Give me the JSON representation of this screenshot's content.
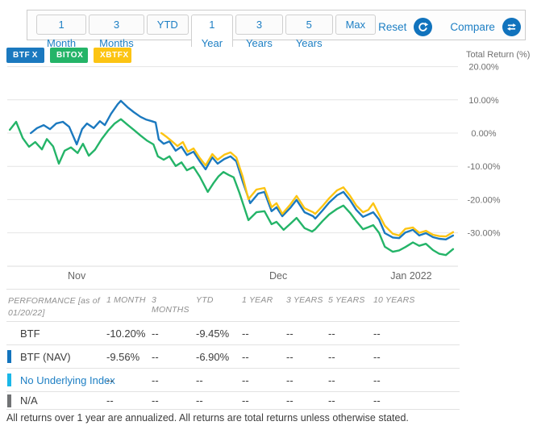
{
  "toolbar": {
    "tabs": [
      {
        "label": "1 Month",
        "selected": false
      },
      {
        "label": "3 Months",
        "selected": false
      },
      {
        "label": "YTD",
        "selected": false
      },
      {
        "label": "1 Year",
        "selected": true
      },
      {
        "label": "3 Years",
        "selected": false
      },
      {
        "label": "5 Years",
        "selected": false
      },
      {
        "label": "Max",
        "selected": false
      }
    ],
    "reset_label": "Reset",
    "compare_label": "Compare",
    "accent_color": "#1d7fc4",
    "icon_circle_color": "#1173bd"
  },
  "tickers": [
    {
      "symbol": "BTF",
      "color": "#1b79bf",
      "close_label": "X"
    },
    {
      "symbol": "BITO",
      "color": "#24b468",
      "close_label": "X"
    },
    {
      "symbol": "XBTF",
      "color": "#fcc413",
      "close_label": "X"
    }
  ],
  "chart_data": {
    "type": "line",
    "y_axis": {
      "label": "Total Return (%)",
      "ticks": [
        "20.00%",
        "10.00%",
        "0.00%",
        "-10.00%",
        "-20.00%",
        "-30.00%"
      ],
      "tick_values": [
        20,
        10,
        0,
        -10,
        -20,
        -30
      ],
      "min": -40,
      "max": 25,
      "grid": true
    },
    "x_axis": {
      "labels": [
        {
          "text": "Nov",
          "pos": 0.154
        },
        {
          "text": "Dec",
          "pos": 0.606
        },
        {
          "text": "Jan 2022",
          "pos": 0.904
        }
      ]
    },
    "series": [
      {
        "name": "BITO",
        "color": "#24b468",
        "points": [
          [
            0.004,
            1.0
          ],
          [
            0.018,
            3.4
          ],
          [
            0.033,
            -1.5
          ],
          [
            0.047,
            -4.1
          ],
          [
            0.061,
            -2.7
          ],
          [
            0.076,
            -4.9
          ],
          [
            0.087,
            -1.8
          ],
          [
            0.101,
            -4.0
          ],
          [
            0.114,
            -9.2
          ],
          [
            0.127,
            -5.3
          ],
          [
            0.141,
            -4.3
          ],
          [
            0.156,
            -6.0
          ],
          [
            0.168,
            -3.2
          ],
          [
            0.181,
            -6.8
          ],
          [
            0.195,
            -5.0
          ],
          [
            0.21,
            -1.8
          ],
          [
            0.224,
            0.7
          ],
          [
            0.239,
            2.9
          ],
          [
            0.253,
            4.2
          ],
          [
            0.268,
            2.5
          ],
          [
            0.282,
            1.0
          ],
          [
            0.297,
            -0.7
          ],
          [
            0.311,
            -2.2
          ],
          [
            0.326,
            -3.4
          ],
          [
            0.336,
            -7.0
          ],
          [
            0.349,
            -8.0
          ],
          [
            0.362,
            -7.0
          ],
          [
            0.376,
            -9.9
          ],
          [
            0.389,
            -8.8
          ],
          [
            0.401,
            -11.2
          ],
          [
            0.416,
            -10.2
          ],
          [
            0.43,
            -13.1
          ],
          [
            0.448,
            -17.7
          ],
          [
            0.461,
            -15.0
          ],
          [
            0.472,
            -13.0
          ],
          [
            0.483,
            -11.7
          ],
          [
            0.495,
            -12.6
          ],
          [
            0.506,
            -13.3
          ],
          [
            0.519,
            -18.0
          ],
          [
            0.539,
            -26.2
          ],
          [
            0.557,
            -23.8
          ],
          [
            0.575,
            -23.5
          ],
          [
            0.591,
            -27.4
          ],
          [
            0.602,
            -26.7
          ],
          [
            0.618,
            -29.1
          ],
          [
            0.633,
            -27.3
          ],
          [
            0.647,
            -25.5
          ],
          [
            0.665,
            -28.6
          ],
          [
            0.682,
            -29.6
          ],
          [
            0.689,
            -28.9
          ],
          [
            0.705,
            -26.5
          ],
          [
            0.72,
            -24.5
          ],
          [
            0.738,
            -22.8
          ],
          [
            0.752,
            -21.8
          ],
          [
            0.767,
            -24.0
          ],
          [
            0.781,
            -26.5
          ],
          [
            0.796,
            -28.9
          ],
          [
            0.808,
            -28.3
          ],
          [
            0.819,
            -27.7
          ],
          [
            0.832,
            -30.0
          ],
          [
            0.845,
            -34.2
          ],
          [
            0.863,
            -35.7
          ],
          [
            0.877,
            -35.3
          ],
          [
            0.891,
            -34.3
          ],
          [
            0.908,
            -32.9
          ],
          [
            0.922,
            -33.9
          ],
          [
            0.937,
            -33.3
          ],
          [
            0.953,
            -35.2
          ],
          [
            0.967,
            -36.3
          ],
          [
            0.982,
            -36.7
          ],
          [
            0.998,
            -34.9
          ]
        ]
      },
      {
        "name": "BTF (NAV)",
        "color": "#1b79bf",
        "points": [
          [
            0.051,
            0.0
          ],
          [
            0.065,
            1.5
          ],
          [
            0.08,
            2.4
          ],
          [
            0.094,
            1.2
          ],
          [
            0.108,
            2.9
          ],
          [
            0.123,
            3.4
          ],
          [
            0.137,
            1.9
          ],
          [
            0.154,
            -3.4
          ],
          [
            0.166,
            1.2
          ],
          [
            0.177,
            2.9
          ],
          [
            0.192,
            1.5
          ],
          [
            0.206,
            3.6
          ],
          [
            0.217,
            2.4
          ],
          [
            0.231,
            5.8
          ],
          [
            0.246,
            8.7
          ],
          [
            0.253,
            9.7
          ],
          [
            0.268,
            7.8
          ],
          [
            0.282,
            6.3
          ],
          [
            0.297,
            4.9
          ],
          [
            0.309,
            4.1
          ],
          [
            0.322,
            3.6
          ],
          [
            0.331,
            3.2
          ],
          [
            0.338,
            -1.9
          ],
          [
            0.349,
            -3.2
          ],
          [
            0.362,
            -2.5
          ],
          [
            0.376,
            -5.3
          ],
          [
            0.389,
            -4.1
          ],
          [
            0.401,
            -6.6
          ],
          [
            0.416,
            -5.6
          ],
          [
            0.43,
            -8.5
          ],
          [
            0.443,
            -10.9
          ],
          [
            0.458,
            -7.3
          ],
          [
            0.47,
            -9.2
          ],
          [
            0.485,
            -7.8
          ],
          [
            0.499,
            -7.0
          ],
          [
            0.512,
            -8.5
          ],
          [
            0.526,
            -14.5
          ],
          [
            0.543,
            -21.1
          ],
          [
            0.561,
            -18.2
          ],
          [
            0.575,
            -17.7
          ],
          [
            0.591,
            -23.5
          ],
          [
            0.602,
            -22.3
          ],
          [
            0.615,
            -25.0
          ],
          [
            0.633,
            -22.5
          ],
          [
            0.647,
            -20.1
          ],
          [
            0.665,
            -23.8
          ],
          [
            0.684,
            -25.0
          ],
          [
            0.689,
            -25.7
          ],
          [
            0.705,
            -23.3
          ],
          [
            0.72,
            -20.9
          ],
          [
            0.738,
            -18.7
          ],
          [
            0.752,
            -17.7
          ],
          [
            0.767,
            -20.2
          ],
          [
            0.781,
            -23.1
          ],
          [
            0.796,
            -25.2
          ],
          [
            0.808,
            -24.5
          ],
          [
            0.819,
            -23.8
          ],
          [
            0.832,
            -26.0
          ],
          [
            0.845,
            -30.1
          ],
          [
            0.863,
            -31.4
          ],
          [
            0.877,
            -31.6
          ],
          [
            0.891,
            -29.9
          ],
          [
            0.908,
            -29.1
          ],
          [
            0.922,
            -30.8
          ],
          [
            0.937,
            -30.1
          ],
          [
            0.953,
            -31.3
          ],
          [
            0.967,
            -31.8
          ],
          [
            0.982,
            -32.0
          ],
          [
            0.998,
            -30.8
          ]
        ]
      },
      {
        "name": "XBTF",
        "color": "#fcc413",
        "points": [
          [
            0.344,
            0.0
          ],
          [
            0.356,
            -1.2
          ],
          [
            0.367,
            -2.4
          ],
          [
            0.38,
            -3.9
          ],
          [
            0.392,
            -2.7
          ],
          [
            0.403,
            -5.6
          ],
          [
            0.416,
            -4.6
          ],
          [
            0.43,
            -7.5
          ],
          [
            0.443,
            -9.7
          ],
          [
            0.458,
            -6.3
          ],
          [
            0.47,
            -8.0
          ],
          [
            0.485,
            -6.5
          ],
          [
            0.499,
            -5.8
          ],
          [
            0.512,
            -7.3
          ],
          [
            0.526,
            -13.0
          ],
          [
            0.539,
            -19.9
          ],
          [
            0.557,
            -17.0
          ],
          [
            0.575,
            -16.5
          ],
          [
            0.591,
            -22.3
          ],
          [
            0.602,
            -21.1
          ],
          [
            0.615,
            -24.3
          ],
          [
            0.633,
            -21.5
          ],
          [
            0.647,
            -18.9
          ],
          [
            0.665,
            -22.6
          ],
          [
            0.684,
            -23.8
          ],
          [
            0.689,
            -24.3
          ],
          [
            0.705,
            -22.0
          ],
          [
            0.72,
            -19.6
          ],
          [
            0.738,
            -17.2
          ],
          [
            0.752,
            -16.3
          ],
          [
            0.767,
            -18.9
          ],
          [
            0.781,
            -21.8
          ],
          [
            0.796,
            -23.8
          ],
          [
            0.808,
            -23.1
          ],
          [
            0.819,
            -21.1
          ],
          [
            0.832,
            -24.5
          ],
          [
            0.845,
            -27.9
          ],
          [
            0.863,
            -30.3
          ],
          [
            0.877,
            -30.8
          ],
          [
            0.891,
            -28.8
          ],
          [
            0.908,
            -28.4
          ],
          [
            0.922,
            -30.0
          ],
          [
            0.937,
            -29.4
          ],
          [
            0.953,
            -30.6
          ],
          [
            0.967,
            -31.0
          ],
          [
            0.982,
            -31.1
          ],
          [
            0.998,
            -29.8
          ]
        ]
      }
    ]
  },
  "table": {
    "header": {
      "col0_line1": "PERFORMANCE [as of",
      "col0_line2": "01/20/22]",
      "columns": [
        "1 MONTH",
        "3 MONTHS",
        "YTD",
        "1 YEAR",
        "3 YEARS",
        "5 YEARS",
        "10 YEARS"
      ]
    },
    "rows": [
      {
        "name": "BTF",
        "bar_color": null,
        "name_color": null,
        "values": [
          "-10.20%",
          "--",
          "-9.45%",
          "--",
          "--",
          "--",
          "--"
        ]
      },
      {
        "name": "BTF (NAV)",
        "bar_color": "#1374bd",
        "name_color": null,
        "values": [
          "-9.56%",
          "--",
          "-6.90%",
          "--",
          "--",
          "--",
          "--"
        ]
      },
      {
        "name": "No Underlying Index",
        "bar_color": "#1ab7e8",
        "name_color": "#1d7fc4",
        "values": [
          "--",
          "--",
          "--",
          "--",
          "--",
          "--",
          "--"
        ]
      },
      {
        "name": "N/A",
        "bar_color": "#717375",
        "name_color": null,
        "values": [
          "--",
          "--",
          "--",
          "--",
          "--",
          "--",
          "--"
        ]
      }
    ]
  },
  "footer": {
    "note": "All returns over 1 year are annualized. All returns are total returns unless otherwise stated."
  }
}
